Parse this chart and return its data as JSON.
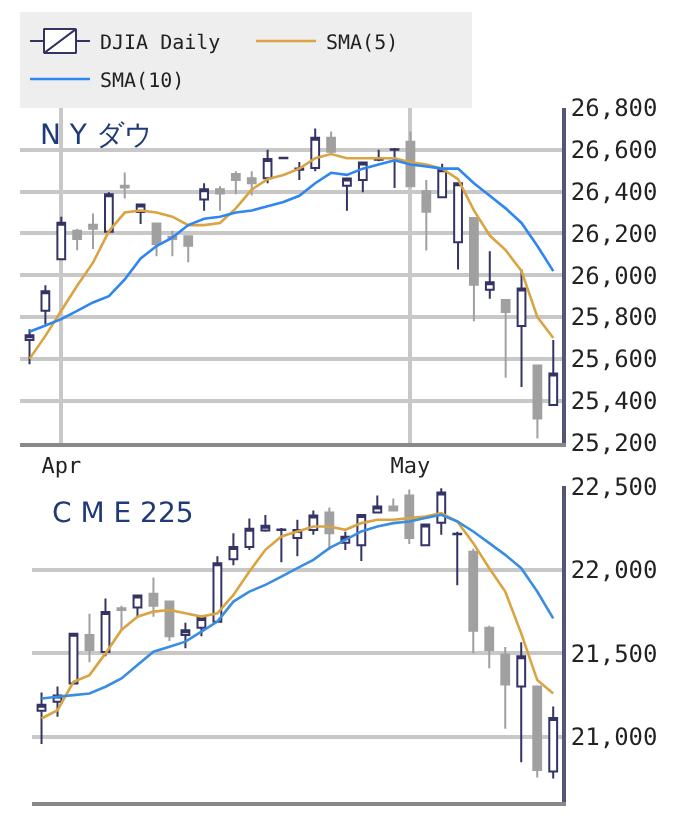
{
  "chart_data": [
    {
      "type": "candlestick",
      "title": "N Y ダウ",
      "legend": "top",
      "grid": true,
      "categories": [
        null,
        null,
        "Apr",
        null,
        null,
        null,
        null,
        null,
        null,
        null,
        null,
        null,
        null,
        null,
        null,
        null,
        null,
        null,
        null,
        null,
        null,
        null,
        null,
        null,
        "May",
        null,
        null,
        null,
        null,
        null,
        null,
        null,
        null,
        null
      ],
      "ylim": [
        25200,
        26800
      ],
      "yticks": [
        {
          "value": 25200,
          "label": "25,200"
        },
        {
          "value": 25400,
          "label": "25,400"
        },
        {
          "value": 25600,
          "label": "25,600"
        },
        {
          "value": 25800,
          "label": "25,800"
        },
        {
          "value": 26000,
          "label": "26,000"
        },
        {
          "value": 26200,
          "label": "26,200"
        },
        {
          "value": 26400,
          "label": "26,400"
        },
        {
          "value": 26600,
          "label": "26,600"
        },
        {
          "value": 26800,
          "label": "26,800"
        }
      ],
      "series": [
        {
          "name": "DJIA Daily",
          "color": "#333366",
          "colors": [
            "#333366",
            "#333366",
            "#333366",
            "#a0a0a0",
            "#a0a0a0",
            "#333366",
            "#a0a0a0",
            "#333366",
            "#a0a0a0",
            "#a0a0a0",
            "#a0a0a0",
            "#333366",
            "#a0a0a0",
            "#a0a0a0",
            "#a0a0a0",
            "#333366",
            "#333366",
            "#333366",
            "#333366",
            "#a0a0a0",
            "#333366",
            "#333366",
            "#333366",
            "#333366",
            "#a0a0a0",
            "#a0a0a0",
            "#333366",
            "#333366",
            "#a0a0a0",
            "#333366",
            "#a0a0a0",
            "#333366",
            "#a0a0a0",
            "#333366"
          ],
          "ohlc": [
            [
              25690,
              25742,
              25574,
              25713
            ],
            [
              25830,
              25952,
              25766,
              25923
            ],
            [
              26077,
              26280,
              26077,
              26251
            ],
            [
              26213,
              26222,
              26120,
              26173
            ],
            [
              26242,
              26295,
              26126,
              26222
            ],
            [
              26208,
              26397,
              26208,
              26388
            ],
            [
              26428,
              26492,
              26367,
              26420
            ],
            [
              26303,
              26338,
              26245,
              26338
            ],
            [
              26248,
              26248,
              26091,
              26149
            ],
            [
              26184,
              26213,
              26091,
              26173
            ],
            [
              26187,
              26187,
              26062,
              26141
            ],
            [
              26362,
              26440,
              26309,
              26411
            ],
            [
              26411,
              26426,
              26309,
              26391
            ],
            [
              26484,
              26498,
              26388,
              26455
            ],
            [
              26464,
              26498,
              26382,
              26440
            ],
            [
              26464,
              26600,
              26440,
              26556
            ],
            [
              26560,
              26565,
              26555,
              26562
            ],
            [
              26505,
              26542,
              26455,
              26510
            ],
            [
              26513,
              26702,
              26498,
              26658
            ],
            [
              26658,
              26687,
              26585,
              26591
            ],
            [
              26428,
              26463,
              26309,
              26463
            ],
            [
              26455,
              26539,
              26397,
              26539
            ],
            [
              26553,
              26600,
              26545,
              26556
            ],
            [
              26600,
              26609,
              26417,
              26603
            ],
            [
              26638,
              26687,
              26426,
              26426
            ],
            [
              26402,
              26455,
              26118,
              26304
            ],
            [
              26373,
              26533,
              26373,
              26507
            ],
            [
              26158,
              26440,
              26027,
              26440
            ],
            [
              26274,
              26274,
              25780,
              25955
            ],
            [
              25931,
              26115,
              25888,
              25966
            ],
            [
              25882,
              25882,
              25510,
              25824
            ],
            [
              25757,
              26027,
              25466,
              25937
            ],
            [
              25568,
              25568,
              25219,
              25315
            ],
            [
              25379,
              25690,
              25379,
              25530
            ]
          ]
        },
        {
          "type": "line",
          "name": "SMA(5)",
          "color": "#d9a441",
          "values": [
            25600,
            25710,
            25830,
            25950,
            26060,
            26210,
            26300,
            26310,
            26300,
            26280,
            26240,
            26240,
            26250,
            26320,
            26410,
            26460,
            26480,
            26510,
            26560,
            26580,
            26560,
            26560,
            26560,
            26560,
            26540,
            26530,
            26510,
            26460,
            26310,
            26190,
            26120,
            26020,
            25800,
            25700
          ]
        },
        {
          "type": "line",
          "name": "SMA(10)",
          "color": "#2f86f0",
          "values": [
            25730,
            25760,
            25790,
            25830,
            25870,
            25900,
            25980,
            26080,
            26140,
            26180,
            26240,
            26270,
            26280,
            26300,
            26310,
            26330,
            26350,
            26380,
            26440,
            26490,
            26480,
            26510,
            26530,
            26550,
            26530,
            26520,
            26510,
            26510,
            26440,
            26380,
            26320,
            26250,
            26140,
            26020
          ]
        }
      ]
    },
    {
      "type": "candlestick",
      "title": "C M E 225",
      "grid": "y",
      "tick_labels": "y",
      "categories": [
        null,
        null,
        null,
        null,
        null,
        null,
        null,
        null,
        null,
        null,
        null,
        null,
        null,
        null,
        null,
        null,
        null,
        null,
        null,
        null,
        null,
        null,
        null,
        null,
        null,
        null,
        null,
        null,
        null,
        null,
        null,
        null,
        null
      ],
      "ylim": [
        20610,
        22505
      ],
      "yticks": [
        {
          "value": 21000,
          "label": "21,000"
        },
        {
          "value": 21500,
          "label": "21,500"
        },
        {
          "value": 22000,
          "label": "22,000"
        },
        {
          "value": 22500,
          "label": "22,500"
        }
      ],
      "series": [
        {
          "color": "#333366",
          "colors": [
            "#333366",
            "#333366",
            "#333366",
            "#a0a0a0",
            "#333366",
            "#a0a0a0",
            "#333366",
            "#a0a0a0",
            "#a0a0a0",
            "#333366",
            "#333366",
            "#333366",
            "#333366",
            "#333366",
            "#333366",
            "#333366",
            "#333366",
            "#333366",
            "#a0a0a0",
            "#333366",
            "#333366",
            "#333366",
            "#a0a0a0",
            "#a0a0a0",
            "#333366",
            "#333366",
            "#333366",
            "#a0a0a0",
            "#a0a0a0",
            "#a0a0a0",
            "#333366",
            "#a0a0a0",
            "#333366"
          ],
          "ohlc": [
            [
              21157,
              21265,
              20957,
              21193
            ],
            [
              21211,
              21302,
              21120,
              21247
            ],
            [
              21320,
              21618,
              21320,
              21618
            ],
            [
              21610,
              21737,
              21447,
              21520
            ],
            [
              21509,
              21828,
              21483,
              21748
            ],
            [
              21770,
              21785,
              21639,
              21759
            ],
            [
              21774,
              21846,
              21719,
              21846
            ],
            [
              21857,
              21955,
              21719,
              21785
            ],
            [
              21810,
              21810,
              21574,
              21603
            ],
            [
              21610,
              21683,
              21531,
              21639
            ],
            [
              21654,
              21727,
              21603,
              21712
            ],
            [
              21690,
              22082,
              21683,
              22039
            ],
            [
              22064,
              22220,
              22028,
              22137
            ],
            [
              22137,
              22308,
              22119,
              22246
            ],
            [
              22235,
              22329,
              22228,
              22264
            ],
            [
              22239,
              22250,
              22046,
              22242
            ],
            [
              22191,
              22300,
              22082,
              22239
            ],
            [
              22239,
              22355,
              22210,
              22326
            ],
            [
              22344,
              22373,
              22119,
              22220
            ],
            [
              22162,
              22228,
              22119,
              22199
            ],
            [
              22148,
              22329,
              22053,
              22329
            ],
            [
              22344,
              22446,
              22337,
              22380
            ],
            [
              22380,
              22427,
              22355,
              22355
            ],
            [
              22446,
              22482,
              22155,
              22191
            ],
            [
              22148,
              22271,
              22148,
              22271
            ],
            [
              22282,
              22489,
              22210,
              22464
            ],
            [
              22213,
              22228,
              21908,
              22217
            ],
            [
              22108,
              22126,
              21501,
              21636
            ],
            [
              21654,
              21665,
              21411,
              21520
            ],
            [
              21494,
              21538,
              21048,
              21313
            ],
            [
              21302,
              21567,
              20848,
              21483
            ],
            [
              21302,
              21302,
              20757,
              20801
            ],
            [
              20793,
              21182,
              20750,
              21113
            ]
          ]
        },
        {
          "type": "line",
          "color": "#d9a441",
          "values": [
            21110,
            21160,
            21330,
            21370,
            21500,
            21640,
            21720,
            21750,
            21760,
            21740,
            21720,
            21740,
            21850,
            21990,
            22120,
            22200,
            22230,
            22260,
            22260,
            22240,
            22280,
            22300,
            22300,
            22310,
            22320,
            22340,
            22290,
            22160,
            22010,
            21870,
            21620,
            21340,
            21260
          ]
        },
        {
          "type": "line",
          "color": "#3a8ee0",
          "values": [
            21230,
            21240,
            21250,
            21260,
            21300,
            21350,
            21430,
            21510,
            21540,
            21570,
            21630,
            21690,
            21810,
            21870,
            21910,
            21960,
            22010,
            22060,
            22130,
            22180,
            22230,
            22260,
            22280,
            22290,
            22310,
            22330,
            22290,
            22230,
            22160,
            22090,
            22010,
            21870,
            21710
          ]
        }
      ]
    }
  ]
}
